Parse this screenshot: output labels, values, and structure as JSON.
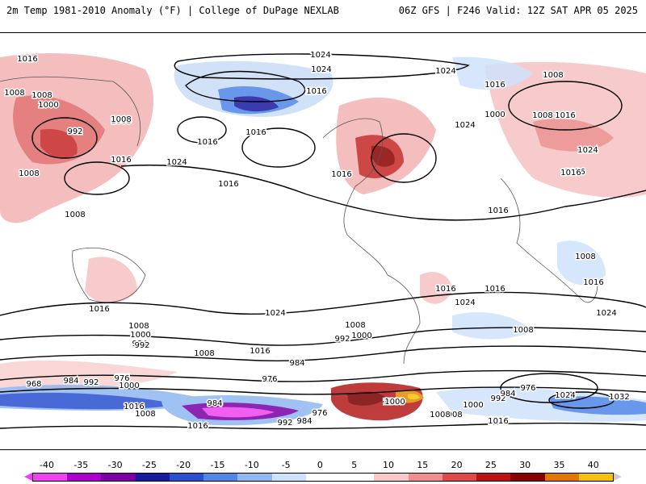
{
  "header": {
    "left_title": "2m Temp 1981-2010 Anomaly (°F) | College of DuPage NEXLAB",
    "right_title": "06Z GFS | F246 Valid: 12Z SAT APR 05 2025"
  },
  "colorbar": {
    "labels": [
      "-40",
      "-35",
      "-30",
      "-25",
      "-20",
      "-15",
      "-10",
      "-5",
      "0",
      "5",
      "10",
      "15",
      "20",
      "25",
      "30",
      "35",
      "40"
    ],
    "colors": [
      "#ee44ee",
      "#aa00cc",
      "#7a00a6",
      "#1a1aa0",
      "#2a4fd1",
      "#4f86e8",
      "#8fb8f2",
      "#cfe2fb",
      "#ffffff",
      "#ffffff",
      "#f9c9c9",
      "#f08d8d",
      "#dc4a4a",
      "#b81414",
      "#860000",
      "#e07800",
      "#f5c20a"
    ],
    "under_color": "#ff33ff",
    "over_color": "#cccccc"
  },
  "isobar_labels": [
    {
      "text": "1016"
    },
    {
      "text": "1024"
    },
    {
      "text": "1024"
    },
    {
      "text": "1024"
    },
    {
      "text": "1008"
    },
    {
      "text": "1016"
    },
    {
      "text": "1000"
    },
    {
      "text": "1008"
    },
    {
      "text": "992"
    },
    {
      "text": "1008"
    },
    {
      "text": "1016"
    },
    {
      "text": "1016"
    },
    {
      "text": "1024"
    },
    {
      "text": "1008"
    },
    {
      "text": "1016"
    },
    {
      "text": "1024"
    },
    {
      "text": "1016"
    },
    {
      "text": "1016"
    },
    {
      "text": "1000"
    },
    {
      "text": "1008"
    },
    {
      "text": "1016"
    },
    {
      "text": "1008"
    },
    {
      "text": "1024"
    },
    {
      "text": "1016"
    },
    {
      "text": "1008"
    },
    {
      "text": "1016"
    },
    {
      "text": "1016"
    },
    {
      "text": "1008"
    },
    {
      "text": "1008"
    },
    {
      "text": "1016"
    },
    {
      "text": "1016"
    },
    {
      "text": "1024"
    },
    {
      "text": "1016"
    },
    {
      "text": "1016"
    },
    {
      "text": "1016"
    },
    {
      "text": "1024"
    },
    {
      "text": "1016"
    },
    {
      "text": "1024"
    },
    {
      "text": "1008"
    },
    {
      "text": "1008"
    },
    {
      "text": "1000"
    },
    {
      "text": "992"
    },
    {
      "text": "984"
    },
    {
      "text": "1008"
    },
    {
      "text": "1016"
    },
    {
      "text": "1008"
    },
    {
      "text": "1000"
    },
    {
      "text": "992"
    },
    {
      "text": "984"
    },
    {
      "text": "976"
    },
    {
      "text": "976"
    },
    {
      "text": "968"
    },
    {
      "text": "984"
    },
    {
      "text": "992"
    },
    {
      "text": "976"
    },
    {
      "text": "1000"
    },
    {
      "text": "1016"
    },
    {
      "text": "1008"
    },
    {
      "text": "984"
    },
    {
      "text": "992"
    },
    {
      "text": "984"
    },
    {
      "text": "976"
    },
    {
      "text": "1000"
    },
    {
      "text": "1008"
    },
    {
      "text": "1000"
    },
    {
      "text": "992"
    },
    {
      "text": "984"
    },
    {
      "text": "976"
    },
    {
      "text": "1024"
    },
    {
      "text": "1032"
    },
    {
      "text": "1016"
    },
    {
      "text": "1016"
    },
    {
      "text": "1000"
    },
    {
      "text": "1008"
    },
    {
      "text": "1016"
    }
  ]
}
